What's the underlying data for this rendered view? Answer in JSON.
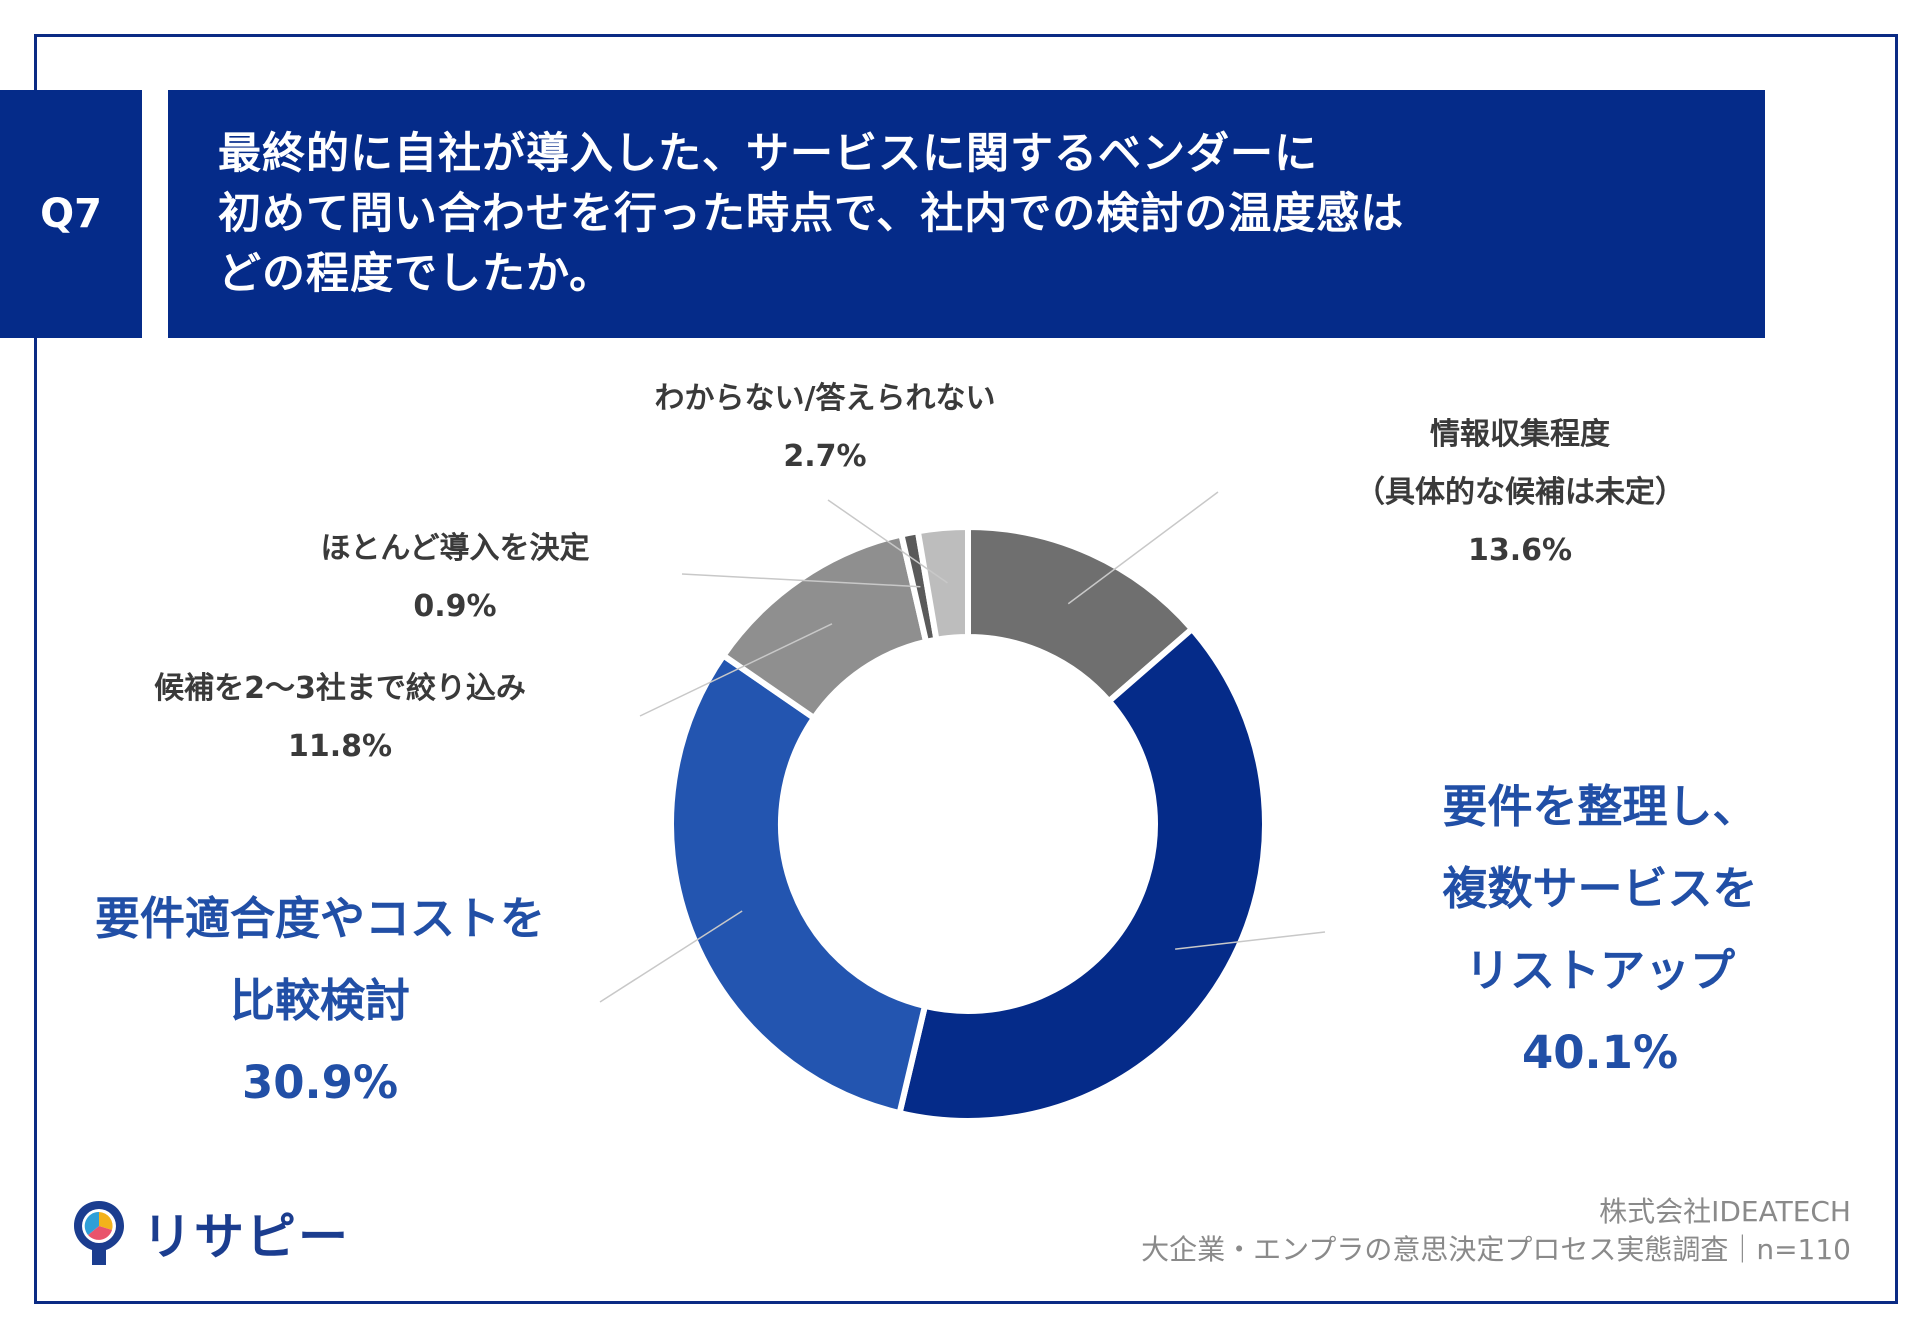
{
  "question": {
    "badge": "Q7",
    "lines": [
      "最終的に自社が導入した、サービスに関するベンダーに",
      "初めて問い合わせを行った時点で、社内での検討の温度感は",
      "どの程度でしたか。"
    ]
  },
  "chart_data": {
    "type": "pie",
    "donut": true,
    "slices": [
      {
        "label_lines": [
          "情報収集程度",
          "（具体的な候補は未定）"
        ],
        "value": 13.6,
        "display": "13.6%",
        "color": "#6f6f6f"
      },
      {
        "label_lines": [
          "要件を整理し、",
          "複数サービスを",
          "リストアップ"
        ],
        "value": 40.1,
        "display": "40.1%",
        "color": "#052b89"
      },
      {
        "label_lines": [
          "要件適合度やコストを",
          "比較検討"
        ],
        "value": 30.9,
        "display": "30.9%",
        "color": "#2355b0"
      },
      {
        "label_lines": [
          "候補を2〜3社まで絞り込み"
        ],
        "value": 11.8,
        "display": "11.8%",
        "color": "#8f8f8f"
      },
      {
        "label_lines": [
          "ほとんど導入を決定"
        ],
        "value": 0.9,
        "display": "0.9%",
        "color": "#5a5a5a"
      },
      {
        "label_lines": [
          "わからない/答えられない"
        ],
        "value": 2.7,
        "display": "2.7%",
        "color": "#bdbdbd"
      }
    ]
  },
  "credit": {
    "company": "株式会社IDEATECH",
    "survey": "大企業・エンプラの意思決定プロセス実態調査｜n=110"
  },
  "logo": {
    "text": "リサピー"
  }
}
